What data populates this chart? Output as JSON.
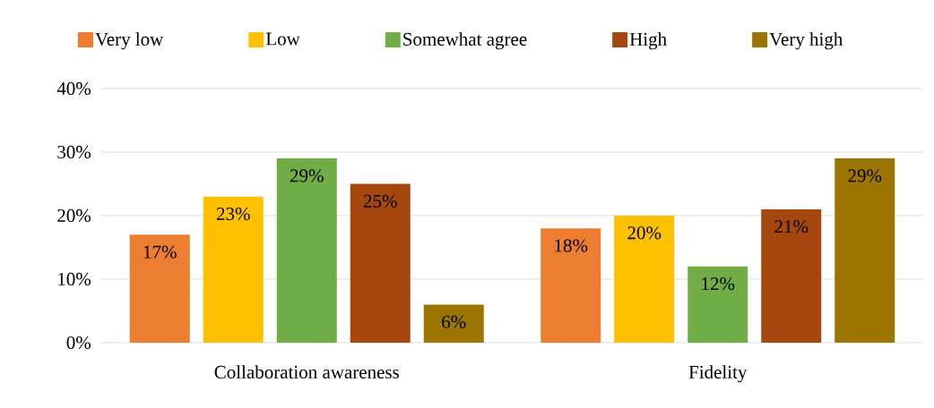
{
  "chart_data": {
    "type": "bar",
    "categories": [
      "Collaboration awareness",
      "Fidelity"
    ],
    "series": [
      {
        "name": "Very low",
        "color": "#ed7d31",
        "values": [
          17,
          18
        ],
        "value_labels": [
          "17%",
          "18%"
        ]
      },
      {
        "name": "Low",
        "color": "#ffc000",
        "values": [
          23,
          20
        ],
        "value_labels": [
          "23%",
          "20%"
        ]
      },
      {
        "name": "Somewhat agree",
        "color": "#70ad47",
        "values": [
          29,
          12
        ],
        "value_labels": [
          "29%",
          "12%"
        ]
      },
      {
        "name": "High",
        "color": "#a5470f",
        "values": [
          25,
          21
        ],
        "value_labels": [
          "25%",
          "21%"
        ]
      },
      {
        "name": "Very high",
        "color": "#9c7400",
        "values": [
          6,
          29
        ],
        "value_labels": [
          "6%",
          "29%"
        ]
      }
    ],
    "ylim": [
      0,
      40
    ],
    "yticks": [
      {
        "value": 0,
        "label": "0%"
      },
      {
        "value": 10,
        "label": "10%"
      },
      {
        "value": 20,
        "label": "20%"
      },
      {
        "value": 30,
        "label": "30%"
      },
      {
        "value": 40,
        "label": "40%"
      }
    ],
    "grid": "y",
    "legend": "top"
  }
}
